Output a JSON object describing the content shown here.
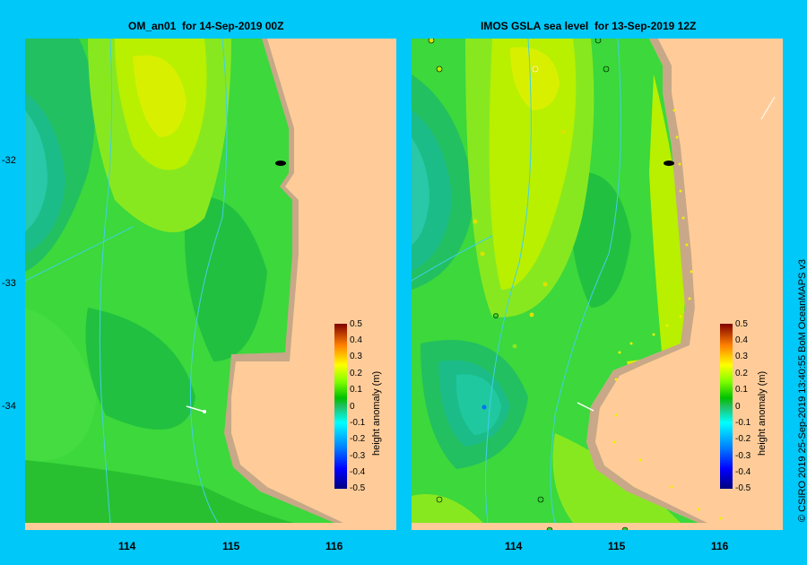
{
  "left_panel": {
    "title": "OM_an01  for 14-Sep-2019 00Z"
  },
  "right_panel": {
    "title": "IMOS GSLA sea level  for 13-Sep-2019 12Z"
  },
  "axes": {
    "y_ticks": [
      "-32",
      "-33",
      "-34"
    ],
    "x_ticks": [
      "114",
      "115",
      "116"
    ]
  },
  "colorbar": {
    "label": "height anomaly (m)",
    "ticks": [
      "0.5",
      "0.4",
      "0.3",
      "0.2",
      "0.1",
      "0",
      "-0.1",
      "-0.2",
      "-0.3",
      "-0.4",
      "-0.5"
    ],
    "range": [
      -0.5,
      0.5
    ]
  },
  "credit": "© CSIRO 2019   25-Sep-2019 13:40:55 BoM OceanMAPS v3",
  "colors": {
    "background": "#00c8f8",
    "land": "#ffcc99",
    "shelf": "#c8a888",
    "green": "#2ed62e",
    "yellow_green": "#b8f000",
    "teal": "#20c8a0"
  }
}
